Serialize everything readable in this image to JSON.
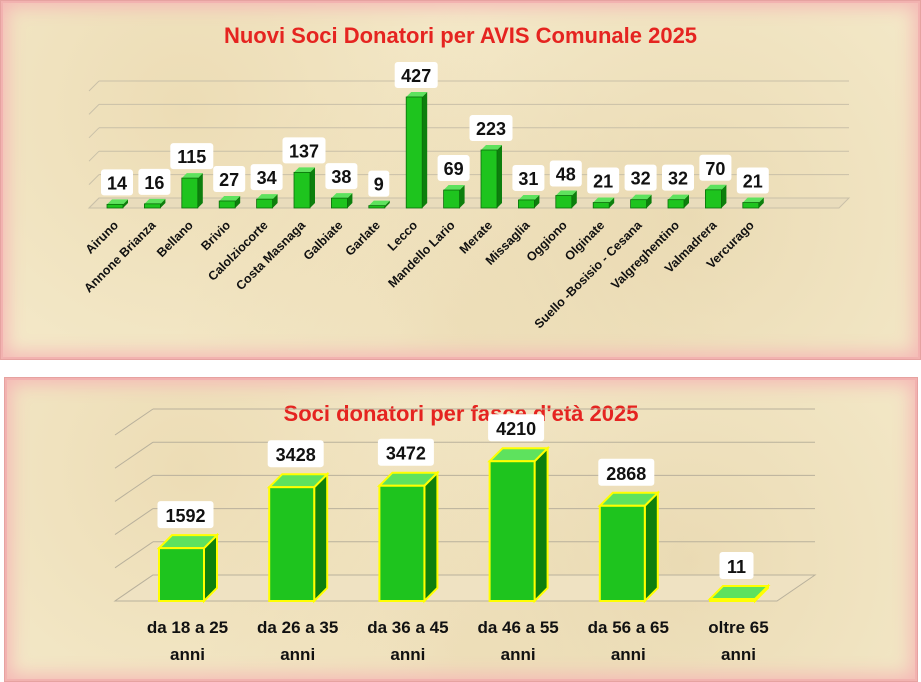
{
  "chart_data": [
    {
      "type": "bar",
      "title": "Nuovi Soci Donatori per AVIS Comunale 2025",
      "categories": [
        "Airuno",
        "Annone Brianza",
        "Bellano",
        "Brivio",
        "Calolziocorte",
        "Costa Masnaga",
        "Galbiate",
        "Garlate",
        "Lecco",
        "Mandello Lario",
        "Merate",
        "Missaglia",
        "Oggiono",
        "Olginate",
        "Suello -Bosisio - Cesana",
        "Valgreghentino",
        "Valmadrera",
        "Vercurago"
      ],
      "values": [
        14,
        16,
        115,
        27,
        34,
        137,
        38,
        9,
        427,
        69,
        223,
        31,
        48,
        21,
        32,
        32,
        70,
        21
      ],
      "ylim": [
        0,
        450
      ],
      "grid": true,
      "legend": "none",
      "colors": {
        "bar_front": "#1ec41e",
        "bar_side": "#0d7f0d",
        "bar_top": "#5ee25e"
      }
    },
    {
      "type": "bar",
      "title": "Soci donatori per fasce d'età 2025",
      "categories": [
        "da 18 a 25 anni",
        "da 26 a 35 anni",
        "da 36 a 45 anni",
        "da 46 a 55 anni",
        "da 56 a 65 anni",
        "oltre 65 anni"
      ],
      "values": [
        1592,
        3428,
        3472,
        4210,
        2868,
        11
      ],
      "ylim": [
        0,
        5000
      ],
      "grid": true,
      "legend": "none",
      "colors": {
        "bar_front": "#1ec41e",
        "bar_side": "#0d7f0d",
        "bar_top": "#5ee25e",
        "bar_outline": "#ffff00"
      }
    }
  ]
}
